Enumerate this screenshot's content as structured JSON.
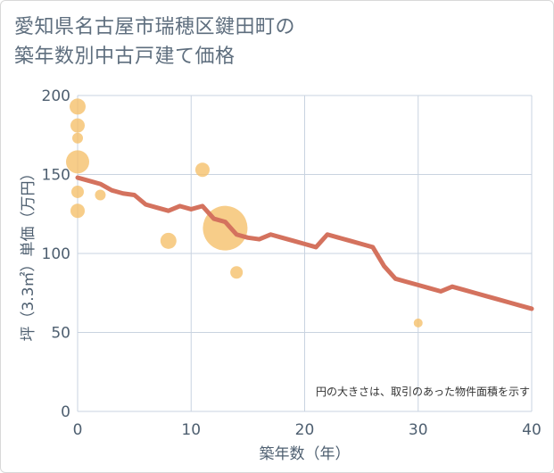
{
  "title_lines": [
    "愛知県名古屋市瑞穂区鍵田町の",
    "築年数別中古戸建て価格"
  ],
  "chart_data": {
    "type": "scatter+line",
    "xlabel": "築年数（年）",
    "ylabel": "坪（3.3㎡）単価（万円）",
    "xlim": [
      0,
      40
    ],
    "ylim": [
      0,
      200
    ],
    "xticks": [
      0,
      10,
      20,
      30,
      40
    ],
    "yticks": [
      0,
      50,
      100,
      150,
      200
    ],
    "grid": true,
    "note": "円の大きさは、取引のあった物件面積を示す",
    "colors": {
      "bubble": "#f5c06b",
      "line": "#d4725e",
      "grid": "#c9d3e0"
    },
    "bubbles": [
      {
        "x": 0,
        "y": 193,
        "r": 9
      },
      {
        "x": 0,
        "y": 181,
        "r": 8
      },
      {
        "x": 0,
        "y": 173,
        "r": 6
      },
      {
        "x": 0,
        "y": 158,
        "r": 13
      },
      {
        "x": 0,
        "y": 139,
        "r": 7
      },
      {
        "x": 0,
        "y": 127,
        "r": 8
      },
      {
        "x": 2,
        "y": 137,
        "r": 6
      },
      {
        "x": 8,
        "y": 108,
        "r": 9
      },
      {
        "x": 11,
        "y": 153,
        "r": 8
      },
      {
        "x": 13,
        "y": 116,
        "r": 25
      },
      {
        "x": 14,
        "y": 88,
        "r": 7
      },
      {
        "x": 30,
        "y": 56,
        "r": 5
      }
    ],
    "line": {
      "x": [
        0,
        1,
        2,
        3,
        4,
        5,
        6,
        7,
        8,
        9,
        10,
        11,
        12,
        13,
        14,
        15,
        16,
        17,
        18,
        19,
        20,
        21,
        22,
        23,
        24,
        25,
        26,
        27,
        28,
        29,
        30,
        31,
        32,
        33,
        34,
        35,
        36,
        37,
        38,
        39,
        40
      ],
      "y": [
        148,
        146,
        144,
        140,
        138,
        137,
        131,
        129,
        127,
        130,
        128,
        130,
        122,
        120,
        112,
        110,
        109,
        112,
        110,
        108,
        106,
        104,
        112,
        110,
        108,
        106,
        104,
        92,
        84,
        82,
        80,
        78,
        76,
        79,
        77,
        75,
        73,
        71,
        69,
        67,
        65
      ]
    }
  }
}
